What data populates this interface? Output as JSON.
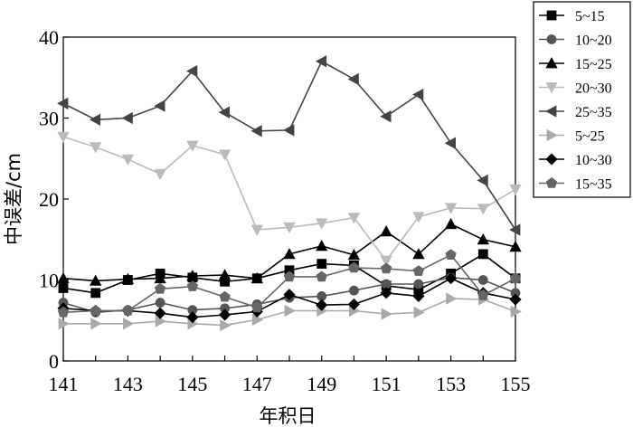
{
  "chart_data": {
    "type": "line",
    "title": "",
    "xlabel": "年积日",
    "ylabel": "中误差/cm",
    "x": [
      141,
      142,
      143,
      144,
      145,
      146,
      147,
      148,
      149,
      150,
      151,
      152,
      153,
      154,
      155
    ],
    "xticks": [
      141,
      143,
      145,
      147,
      149,
      151,
      153,
      155
    ],
    "yticks": [
      0,
      10,
      20,
      30,
      40
    ],
    "xlim": [
      141,
      155
    ],
    "ylim": [
      0,
      40
    ],
    "grid": false,
    "legend_position": "top-right",
    "series": [
      {
        "name": "5~15",
        "marker": "square",
        "color": "#000000",
        "values": [
          9.0,
          8.4,
          10.0,
          10.8,
          10.3,
          9.8,
          10.2,
          11.2,
          12.0,
          11.8,
          9.3,
          8.8,
          10.8,
          13.2,
          10.2
        ]
      },
      {
        "name": "10~20",
        "marker": "circle",
        "color": "#555555",
        "values": [
          7.2,
          6.0,
          6.3,
          7.2,
          6.3,
          6.5,
          7.0,
          7.8,
          8.0,
          8.7,
          9.5,
          9.5,
          10.3,
          10.0,
          8.4
        ]
      },
      {
        "name": "15~25",
        "marker": "triangle-up",
        "color": "#000000",
        "values": [
          10.2,
          9.9,
          10.1,
          10.2,
          10.5,
          10.6,
          10.2,
          13.2,
          14.2,
          13.1,
          16.0,
          13.2,
          16.9,
          15.0,
          14.1
        ]
      },
      {
        "name": "20~30",
        "marker": "triangle-down",
        "color": "#bbbbbb",
        "values": [
          27.7,
          26.4,
          24.9,
          23.1,
          26.6,
          25.5,
          16.2,
          16.5,
          17.0,
          17.7,
          12.4,
          17.8,
          18.9,
          18.8,
          21.2
        ]
      },
      {
        "name": "25~35",
        "marker": "triangle-left",
        "color": "#444444",
        "values": [
          31.8,
          29.8,
          30.0,
          31.5,
          35.8,
          30.7,
          28.4,
          28.5,
          37.0,
          34.8,
          30.2,
          32.9,
          26.9,
          22.3,
          16.2
        ]
      },
      {
        "name": "5~25",
        "marker": "triangle-right",
        "color": "#aaaaaa",
        "values": [
          4.6,
          4.6,
          4.6,
          4.9,
          4.6,
          4.4,
          5.1,
          6.2,
          6.2,
          6.2,
          5.8,
          6.0,
          7.7,
          7.6,
          6.1
        ]
      },
      {
        "name": "10~30",
        "marker": "diamond",
        "color": "#000000",
        "values": [
          6.5,
          6.2,
          6.2,
          5.9,
          5.4,
          5.7,
          6.1,
          8.2,
          6.9,
          7.0,
          8.4,
          8.0,
          10.2,
          8.4,
          7.6
        ]
      },
      {
        "name": "15~35",
        "marker": "pentagon",
        "color": "#666666",
        "values": [
          6.0,
          6.2,
          6.2,
          8.9,
          9.2,
          7.9,
          6.6,
          10.4,
          10.4,
          11.5,
          11.4,
          11.1,
          13.1,
          8.1,
          10.2
        ]
      }
    ]
  }
}
